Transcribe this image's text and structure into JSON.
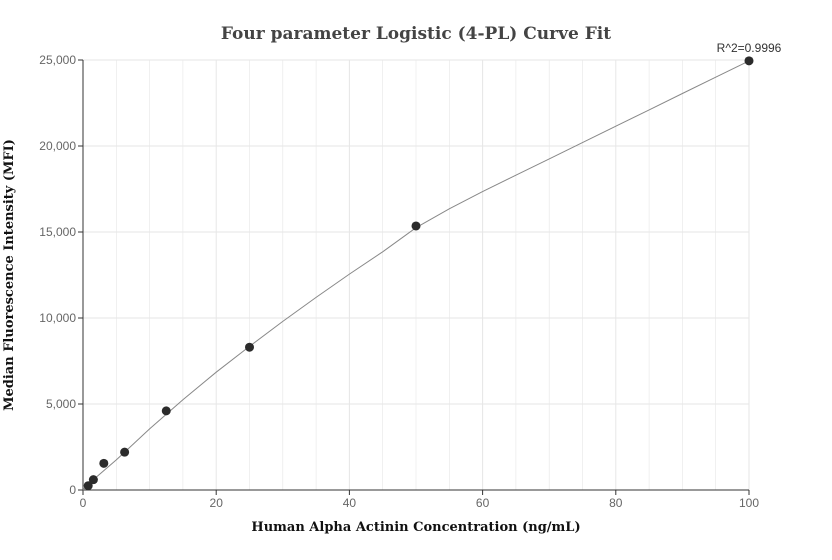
{
  "chart_data": {
    "type": "scatter",
    "title": "Four parameter Logistic (4-PL) Curve Fit",
    "xlabel": "Human Alpha Actinin Concentration (ng/mL)",
    "ylabel": "Median Fluorescence Intensity (MFI)",
    "xlim": [
      0,
      100
    ],
    "ylim": [
      0,
      25000
    ],
    "x_ticks": [
      0,
      20,
      40,
      60,
      80,
      100
    ],
    "x_tick_labels": [
      "0",
      "20",
      "40",
      "60",
      "80",
      "100"
    ],
    "y_ticks": [
      0,
      5000,
      10000,
      15000,
      20000,
      25000
    ],
    "y_tick_labels": [
      "0",
      "5,000",
      "10,000",
      "15,000",
      "20,000",
      "25,000"
    ],
    "grid": true,
    "annotation": "R^2=0.9996",
    "points": [
      {
        "x": 0.78,
        "y": 250
      },
      {
        "x": 1.56,
        "y": 600
      },
      {
        "x": 3.125,
        "y": 1550
      },
      {
        "x": 6.25,
        "y": 2200
      },
      {
        "x": 12.5,
        "y": 4600
      },
      {
        "x": 25,
        "y": 8300
      },
      {
        "x": 50,
        "y": 15350
      },
      {
        "x": 100,
        "y": 24950
      }
    ],
    "fit_curve": {
      "x": [
        0,
        2,
        5,
        10,
        15,
        20,
        25,
        30,
        35,
        40,
        45,
        50,
        55,
        60,
        65,
        70,
        75,
        80,
        85,
        90,
        95,
        100
      ],
      "y": [
        0,
        750,
        1750,
        3550,
        5250,
        6850,
        8350,
        9800,
        11200,
        12550,
        13850,
        15250,
        16350,
        17350,
        18300,
        19250,
        20200,
        21150,
        22100,
        23050,
        24000,
        24950
      ]
    },
    "colors": {
      "point": "#2b2b2b",
      "line": "#888888",
      "grid": "#e6e6e6",
      "axis": "#333333"
    }
  }
}
